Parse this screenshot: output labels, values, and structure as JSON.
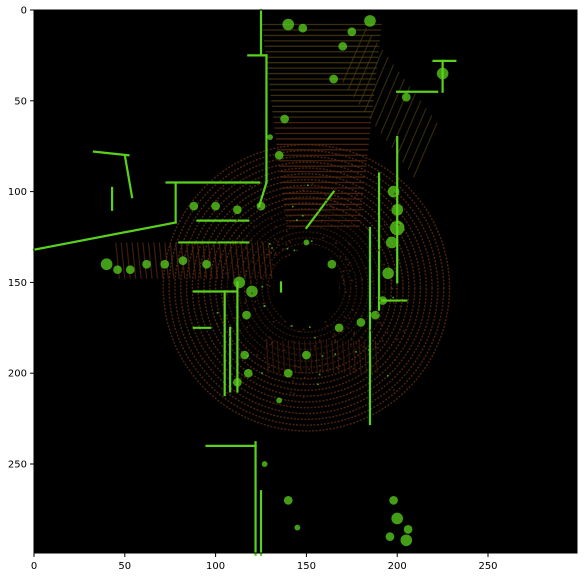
{
  "chart_data": {
    "type": "heatmap",
    "title": "",
    "xlabel": "",
    "ylabel": "",
    "xlim": [
      0,
      299
    ],
    "ylim": [
      299,
      0
    ],
    "x_ticks": [
      0,
      50,
      100,
      150,
      200,
      250
    ],
    "y_ticks": [
      0,
      50,
      100,
      150,
      200,
      250
    ],
    "grid": false,
    "background_color": "#000000",
    "colors": {
      "wall": "#59d11d",
      "wall_bright": "#7cf02e",
      "ground_dark": "#3a1a0a",
      "ground_mid": "#5a2a10",
      "ground_far": "#4a3a12"
    }
  }
}
